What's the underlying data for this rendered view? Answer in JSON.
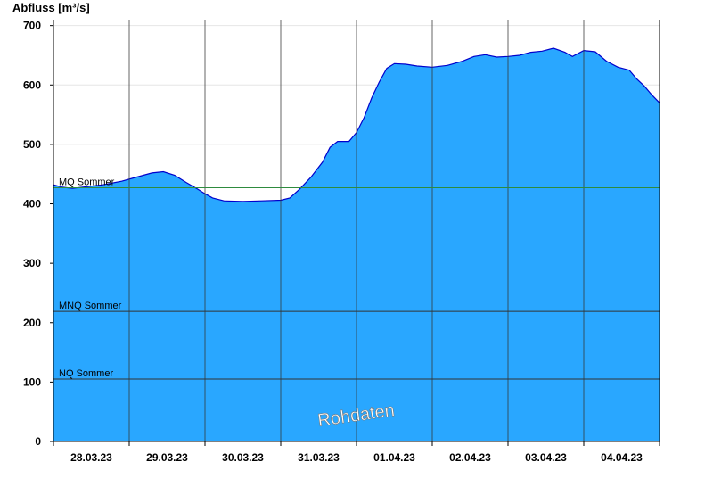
{
  "chart_data": {
    "type": "area",
    "ylabel": "Abfluss [m³/s]",
    "ylim": [
      0,
      710
    ],
    "yticks": [
      0,
      100,
      200,
      300,
      400,
      500,
      600,
      700
    ],
    "x_categories": [
      "28.03.23",
      "29.03.23",
      "30.03.23",
      "31.03.23",
      "01.04.23",
      "02.04.23",
      "03.04.23",
      "04.04.23"
    ],
    "x_range_days": [
      0,
      8
    ],
    "reference_lines": [
      {
        "label": "MQ Sommer",
        "value": 427,
        "color": "#2e8b3e"
      },
      {
        "label": "MNQ Sommer",
        "value": 219,
        "color": "#333333"
      },
      {
        "label": "NQ Sommer",
        "value": 105,
        "color": "#333333"
      }
    ],
    "watermark": "Rohdaten",
    "colors": {
      "fill": "#29a7ff",
      "line": "#0000cc",
      "grid_v": "#333333",
      "grid_h": "#e6e6e6"
    },
    "series": [
      {
        "values": [
          [
            0.0,
            432
          ],
          [
            0.12,
            428
          ],
          [
            0.25,
            426
          ],
          [
            0.45,
            429
          ],
          [
            0.65,
            432
          ],
          [
            0.9,
            438
          ],
          [
            1.1,
            445
          ],
          [
            1.3,
            452
          ],
          [
            1.45,
            454
          ],
          [
            1.6,
            448
          ],
          [
            1.75,
            436
          ],
          [
            1.9,
            425
          ],
          [
            2.0,
            417
          ],
          [
            2.1,
            410
          ],
          [
            2.25,
            405
          ],
          [
            2.5,
            404
          ],
          [
            2.75,
            405
          ],
          [
            3.0,
            406
          ],
          [
            3.12,
            410
          ],
          [
            3.25,
            425
          ],
          [
            3.4,
            445
          ],
          [
            3.55,
            470
          ],
          [
            3.65,
            495
          ],
          [
            3.75,
            505
          ],
          [
            3.9,
            505
          ],
          [
            4.0,
            520
          ],
          [
            4.1,
            545
          ],
          [
            4.2,
            578
          ],
          [
            4.3,
            605
          ],
          [
            4.4,
            628
          ],
          [
            4.5,
            636
          ],
          [
            4.65,
            635
          ],
          [
            4.8,
            632
          ],
          [
            5.0,
            630
          ],
          [
            5.2,
            633
          ],
          [
            5.4,
            640
          ],
          [
            5.55,
            648
          ],
          [
            5.7,
            651
          ],
          [
            5.85,
            647
          ],
          [
            6.0,
            648
          ],
          [
            6.15,
            650
          ],
          [
            6.3,
            655
          ],
          [
            6.45,
            657
          ],
          [
            6.6,
            662
          ],
          [
            6.75,
            655
          ],
          [
            6.85,
            648
          ],
          [
            7.0,
            658
          ],
          [
            7.15,
            656
          ],
          [
            7.3,
            640
          ],
          [
            7.45,
            630
          ],
          [
            7.6,
            625
          ],
          [
            7.7,
            610
          ],
          [
            7.8,
            598
          ],
          [
            7.9,
            583
          ],
          [
            8.0,
            570
          ]
        ]
      }
    ]
  }
}
